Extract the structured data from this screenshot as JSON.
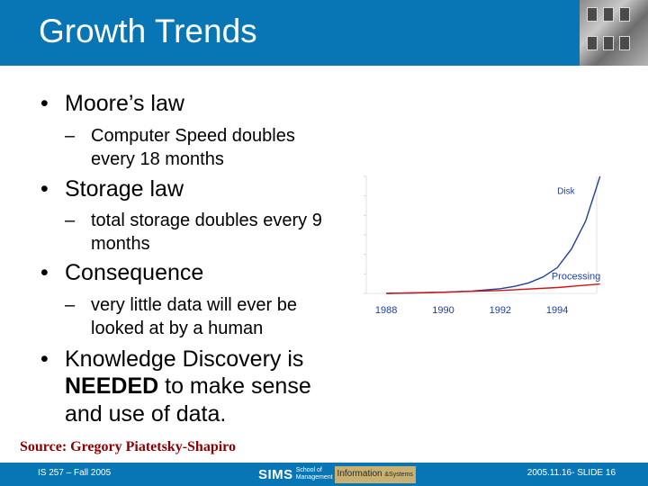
{
  "slide": {
    "title": "Growth Trends",
    "bullets": [
      {
        "text": "Moore’s law",
        "subs": [
          "Computer Speed doubles",
          "every 18 months"
        ]
      },
      {
        "text": "Storage law",
        "subs": [
          "total storage doubles every 9",
          "months"
        ]
      },
      {
        "text": "Consequence",
        "subs": [
          "very little data will ever be",
          "looked at by a human"
        ]
      },
      {
        "lines": [
          "Knowledge Discovery is",
          "NEEDED",
          " to make sense",
          "and use of data."
        ]
      }
    ],
    "bullet_glyph": "•",
    "dash_glyph": "–",
    "source": "Source: Gregory Piatetsky-Shapiro"
  },
  "chart_data": {
    "type": "line",
    "x_tick_labels": [
      "1988",
      "1990",
      "1992",
      "1994"
    ],
    "series": [
      {
        "name": "Disk",
        "color": "#1f3f9f",
        "x": [
          1988,
          1989,
          1990,
          1991,
          1992,
          1992.5,
          1993,
          1993.5,
          1994,
          1994.5,
          1995,
          1995.5
        ],
        "y": [
          0,
          0.4,
          1,
          2,
          4,
          6,
          9,
          14,
          22,
          38,
          62,
          100
        ]
      },
      {
        "name": "Processing",
        "color": "#d01515",
        "x": [
          1988,
          1990,
          1992,
          1994,
          1995.5
        ],
        "y": [
          0,
          1,
          2.5,
          5,
          8
        ]
      }
    ]
  },
  "footer": {
    "left": "IS 257 – Fall 2005",
    "logo_big": "SIMS",
    "logo_small_1": "School of",
    "logo_small_2": "Management",
    "logo_info": "Information",
    "logo_sys": "&Systems",
    "right": "2005.11.16- SLIDE 16"
  },
  "colors": {
    "header": "#0876b5",
    "source": "#8b0000"
  }
}
